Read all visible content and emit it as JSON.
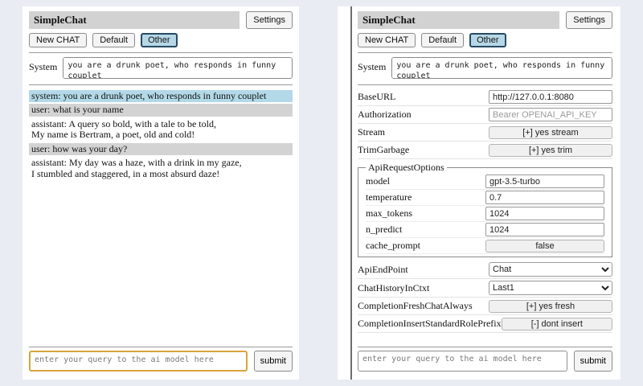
{
  "common": {
    "title": "SimpleChat",
    "settings_button": "Settings",
    "sessions": {
      "new_chat": "New CHAT",
      "default": "Default",
      "other": "Other",
      "selected": "Other"
    },
    "system": {
      "label": "System",
      "value": "you are a drunk poet, who responds in funny couplet"
    },
    "query": {
      "placeholder": "enter your query to the ai model here",
      "submit": "submit"
    }
  },
  "chat": {
    "messages": [
      {
        "role": "system",
        "line1": "system: you are a drunk poet, who responds in funny couplet"
      },
      {
        "role": "user",
        "line1": "user: what is your name"
      },
      {
        "role": "assistant",
        "line1": "assistant: A query so bold, with a tale to be told,",
        "line2": "My name is Bertram, a poet, old and cold!"
      },
      {
        "role": "user",
        "line1": "user: how was your day?"
      },
      {
        "role": "assistant",
        "line1": "assistant: My day was a haze, with a drink in my gaze,",
        "line2": "I stumbled and staggered, in a most absurd daze!"
      }
    ]
  },
  "settings": {
    "base_url": {
      "label": "BaseURL",
      "value": "http://127.0.0.1:8080"
    },
    "authorization": {
      "label": "Authorization",
      "placeholder": "Bearer OPENAI_API_KEY"
    },
    "stream": {
      "label": "Stream",
      "value": "[+] yes stream"
    },
    "trim_garbage": {
      "label": "TrimGarbage",
      "value": "[+] yes trim"
    },
    "api_request_options": {
      "legend": "ApiRequestOptions",
      "model": {
        "label": "model",
        "value": "gpt-3.5-turbo"
      },
      "temperature": {
        "label": "temperature",
        "value": "0.7"
      },
      "max_tokens": {
        "label": "max_tokens",
        "value": "1024"
      },
      "n_predict": {
        "label": "n_predict",
        "value": "1024"
      },
      "cache_prompt": {
        "label": "cache_prompt",
        "value": "false"
      }
    },
    "api_endpoint": {
      "label": "ApiEndPoint",
      "value": "Chat"
    },
    "chat_history_in_ctxt": {
      "label": "ChatHistoryInCtxt",
      "value": "Last1"
    },
    "completion_fresh_chat_always": {
      "label": "CompletionFreshChatAlways",
      "value": "[+] yes fresh"
    },
    "completion_insert_standard_role_prefix": {
      "label": "CompletionInsertStandardRolePrefix",
      "value": "[-] dont insert"
    }
  },
  "colors": {
    "page_background": "#e9ecf3",
    "titlebar_background": "#d2d2d2",
    "selected_session_background": "#b6d7e6",
    "selected_session_border": "#274b63",
    "system_message_background": "#b3d9e8",
    "user_message_background": "#d3d3d3",
    "focused_query_border": "#d9a43c"
  }
}
